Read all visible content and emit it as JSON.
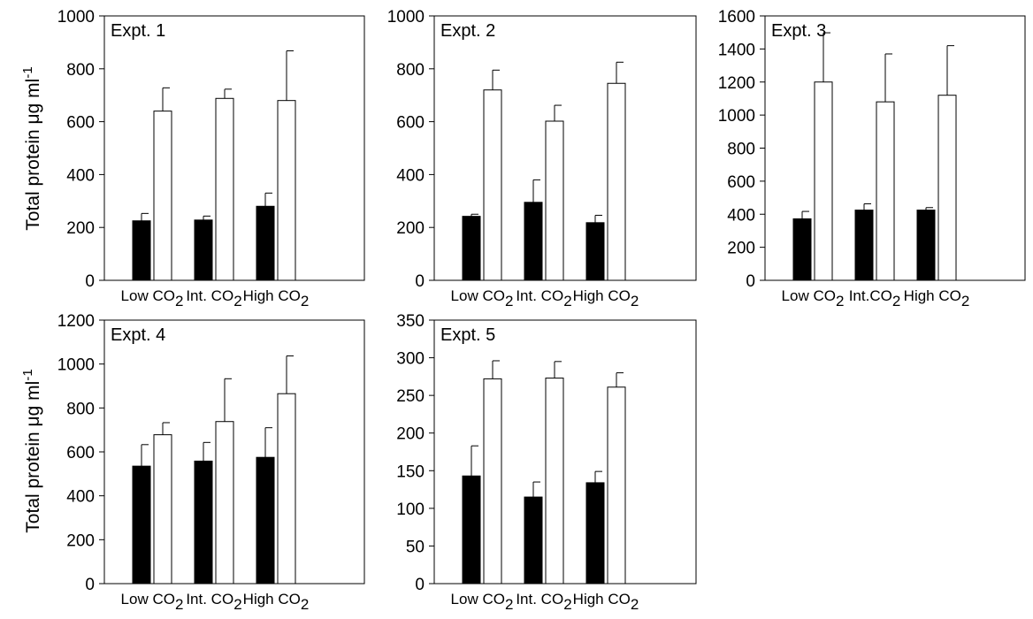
{
  "y_axis_label": {
    "text": "Total protein ",
    "mu": "μ",
    "rest": "g ml",
    "sup": "-1"
  },
  "subscript_2": "2",
  "chart_data": [
    {
      "type": "bar",
      "title": "Expt. 1",
      "categories": [
        {
          "text": "Low CO",
          "sub": "2"
        },
        {
          "text": "Int. CO",
          "sub": "2"
        },
        {
          "text": "High CO",
          "sub": "2"
        }
      ],
      "ylim": [
        0,
        1000
      ],
      "yticks": [
        "0",
        "200",
        "400",
        "600",
        "800",
        "1000"
      ],
      "grid": false,
      "series": [
        {
          "fill": "#000000",
          "values": [
            225,
            228,
            280
          ],
          "errors": [
            28,
            15,
            50
          ]
        },
        {
          "fill": "#ffffff",
          "values": [
            640,
            688,
            680
          ],
          "errors": [
            88,
            35,
            188
          ]
        }
      ]
    },
    {
      "type": "bar",
      "title": "Expt. 2",
      "categories": [
        {
          "text": "Low CO",
          "sub": "2"
        },
        {
          "text": "Int. CO",
          "sub": "2"
        },
        {
          "text": "High CO",
          "sub": "2"
        }
      ],
      "ylim": [
        0,
        1000
      ],
      "yticks": [
        "0",
        "200",
        "400",
        "600",
        "800",
        "1000"
      ],
      "grid": false,
      "series": [
        {
          "fill": "#000000",
          "values": [
            242,
            295,
            218
          ],
          "errors": [
            8,
            85,
            28
          ]
        },
        {
          "fill": "#ffffff",
          "values": [
            720,
            602,
            745
          ],
          "errors": [
            75,
            60,
            80
          ]
        }
      ]
    },
    {
      "type": "bar",
      "title": "Expt. 3",
      "categories": [
        {
          "text": "Low CO",
          "sub": "2"
        },
        {
          "text": "Int.CO",
          "sub": "2"
        },
        {
          "text": "High CO",
          "sub": "2"
        }
      ],
      "ylim": [
        0,
        1600
      ],
      "yticks": [
        "0",
        "200",
        "400",
        "600",
        "800",
        "1000",
        "1200",
        "1400",
        "1600"
      ],
      "grid": false,
      "series": [
        {
          "fill": "#000000",
          "values": [
            372,
            425,
            425
          ],
          "errors": [
            45,
            38,
            15
          ]
        },
        {
          "fill": "#ffffff",
          "values": [
            1200,
            1080,
            1120
          ],
          "errors": [
            298,
            290,
            300
          ]
        }
      ]
    },
    {
      "type": "bar",
      "title": "Expt. 4",
      "categories": [
        {
          "text": "Low CO",
          "sub": "2"
        },
        {
          "text": "Int. CO",
          "sub": "2"
        },
        {
          "text": "High CO",
          "sub": "2"
        }
      ],
      "ylim": [
        0,
        1200
      ],
      "yticks": [
        "0",
        "200",
        "400",
        "600",
        "800",
        "1000",
        "1200"
      ],
      "grid": false,
      "series": [
        {
          "fill": "#000000",
          "values": [
            535,
            558,
            575
          ],
          "errors": [
            98,
            85,
            135
          ]
        },
        {
          "fill": "#ffffff",
          "values": [
            678,
            738,
            865
          ],
          "errors": [
            55,
            195,
            172
          ]
        }
      ]
    },
    {
      "type": "bar",
      "title": "Expt. 5",
      "categories": [
        {
          "text": "Low CO",
          "sub": "2"
        },
        {
          "text": "Int. CO",
          "sub": "2"
        },
        {
          "text": "High CO",
          "sub": "2"
        }
      ],
      "ylim": [
        0,
        350
      ],
      "yticks": [
        "0",
        "50",
        "100",
        "150",
        "200",
        "250",
        "300",
        "350"
      ],
      "grid": false,
      "series": [
        {
          "fill": "#000000",
          "values": [
            143,
            115,
            134
          ],
          "errors": [
            40,
            20,
            15
          ]
        },
        {
          "fill": "#ffffff",
          "values": [
            272,
            273,
            261
          ],
          "errors": [
            24,
            22,
            19
          ]
        }
      ]
    }
  ]
}
